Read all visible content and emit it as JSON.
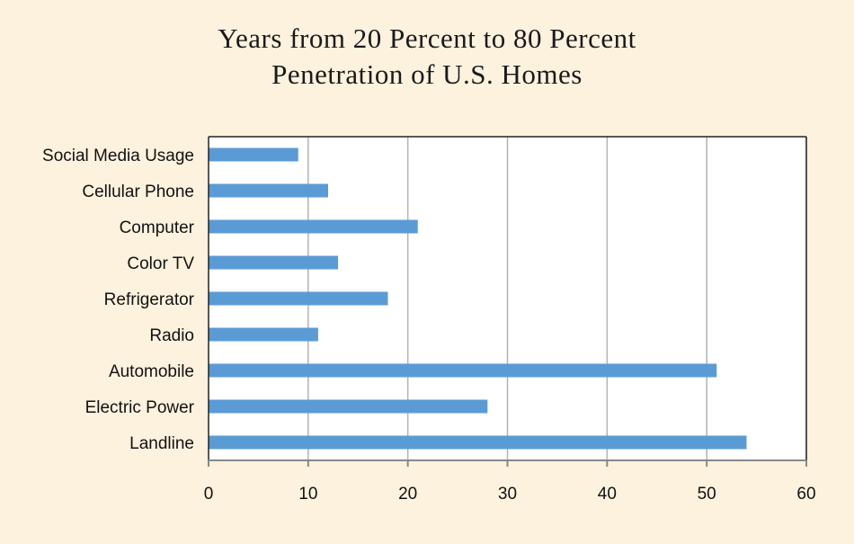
{
  "chart_data": {
    "type": "bar",
    "orientation": "horizontal",
    "title_lines": [
      "Years from 20 Percent to 80 Percent",
      "Penetration of U.S. Homes"
    ],
    "xlabel": "",
    "ylabel": "",
    "categories": [
      "Social Media Usage",
      "Cellular Phone",
      "Computer",
      "Color TV",
      "Refrigerator",
      "Radio",
      "Automobile",
      "Electric Power",
      "Landline"
    ],
    "values": [
      9,
      12,
      21,
      13,
      18,
      11,
      51,
      28,
      54
    ],
    "xlim": [
      0,
      60
    ],
    "xticks": [
      0,
      10,
      20,
      30,
      40,
      50,
      60
    ],
    "grid": "vertical",
    "legend": "none",
    "bar_color": "#5b9bd5"
  },
  "colors": {
    "background": "#fdf2de",
    "plot_background": "#ffffff",
    "gridline": "#b3b3b3",
    "axis": "#888888"
  }
}
